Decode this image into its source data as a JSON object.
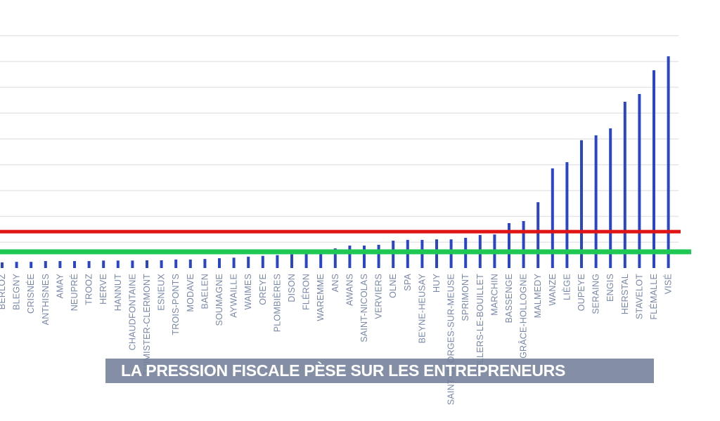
{
  "banner": {
    "text": "LA PRESSION FISCALE PÈSE SUR LES ENTREPRENEURS"
  },
  "colors": {
    "bar": "#2a45c8",
    "reference_red": "#e01414",
    "reference_green": "#1ec853",
    "grid": "#e6e6e6",
    "banner_bg": "#737f98",
    "label": "#7a88a8"
  },
  "chart_data": {
    "type": "bar",
    "title": "",
    "xlabel": "",
    "ylabel": "",
    "ylim": [
      0,
      9
    ],
    "grid": true,
    "yticks_units": "relative (gridline steps, no tick labels shown)",
    "categories": [
      "BERLOZ",
      "BLEGNY",
      "CRISNÉE",
      "ANTHISNES",
      "AMAY",
      "NEUPRÉ",
      "TROOZ",
      "HERVE",
      "HANNUT",
      "CHAUDFONTAINE",
      "THIMISTER-CLERMONT",
      "ESNEUX",
      "TROIS-PONTS",
      "MODAVE",
      "BAELEN",
      "SOUMAGNE",
      "AYWAILLE",
      "WAIMES",
      "OREYE",
      "PLOMBIÈRES",
      "DISON",
      "FLÉRON",
      "WAREMME",
      "ANS",
      "AWANS",
      "SAINT-NICOLAS",
      "VERVIERS",
      "OLNE",
      "SPA",
      "BEYNE-HEUSAY",
      "HUY",
      "SAINT-GEORGES-SUR-MEUSE",
      "SPRIMONT",
      "VILLERS-LE-BOUILLET",
      "MARCHIN",
      "BASSENGE",
      "GRÂCE-HOLLOGNE",
      "MALMEDY",
      "WANZE",
      "LIÈGE",
      "OUPEYE",
      "SERAING",
      "ENGIS",
      "HERSTAL",
      "STAVELOT",
      "FLÉMALLE",
      "VISÉ"
    ],
    "values": [
      0.22,
      0.24,
      0.24,
      0.27,
      0.27,
      0.27,
      0.27,
      0.29,
      0.29,
      0.29,
      0.3,
      0.3,
      0.33,
      0.33,
      0.35,
      0.38,
      0.4,
      0.44,
      0.47,
      0.5,
      0.53,
      0.55,
      0.6,
      0.76,
      0.87,
      0.87,
      0.9,
      1.06,
      1.09,
      1.09,
      1.11,
      1.11,
      1.17,
      1.28,
      1.3,
      1.74,
      1.82,
      2.55,
      3.86,
      4.1,
      4.95,
      5.14,
      5.41,
      6.44,
      6.74,
      7.66,
      8.2
    ],
    "reference_lines": [
      {
        "name": "red-reference",
        "value": 1.41,
        "color": "#e01414"
      },
      {
        "name": "green-reference",
        "value": 0.63,
        "color": "#1ec853"
      }
    ]
  }
}
